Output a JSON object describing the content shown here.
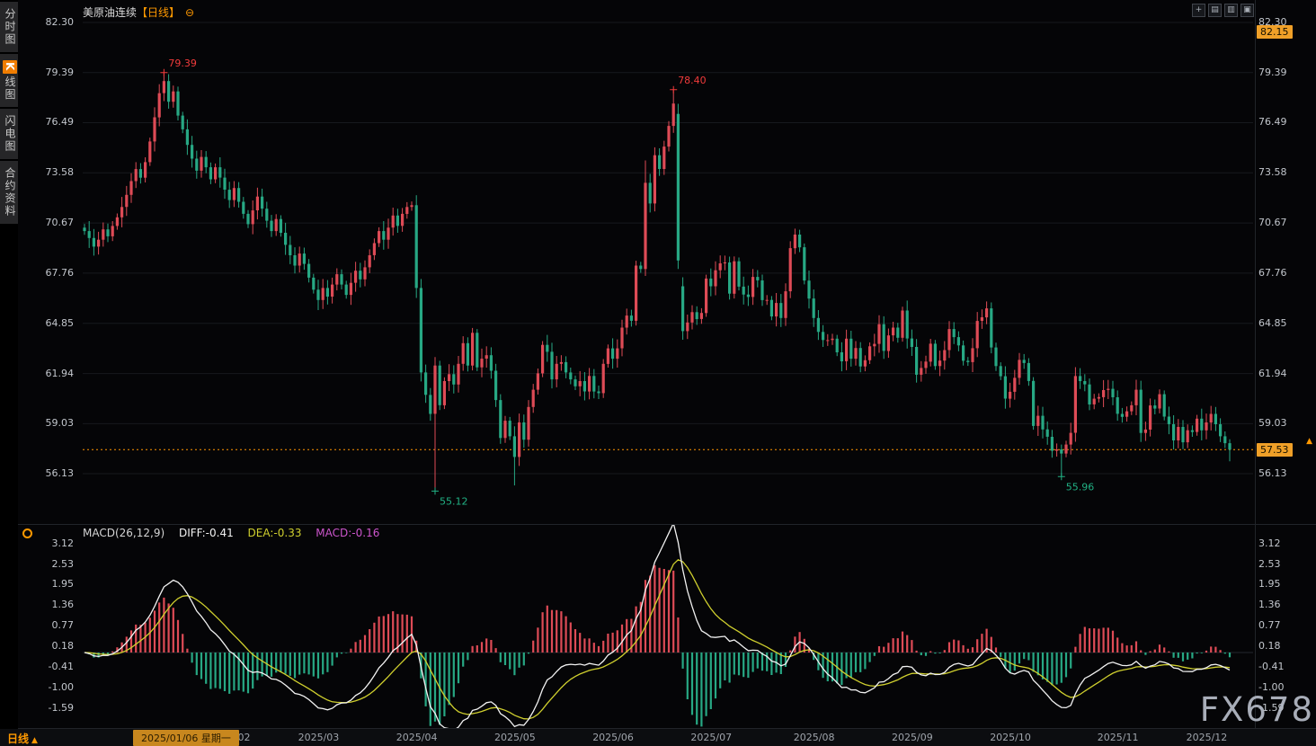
{
  "app": {
    "title_symbol": "美原油连续",
    "title_period": "【日线】",
    "watermark": "FX678"
  },
  "icons": {
    "settings_glyph": "⊖",
    "toolbar": [
      {
        "name": "add-window",
        "glyph": "+"
      },
      {
        "name": "kline-view",
        "glyph": "▤"
      },
      {
        "name": "chart-style",
        "glyph": "▥"
      },
      {
        "name": "maximize",
        "glyph": "▣"
      }
    ],
    "period_arrow": "▲",
    "price_arrow": "▲"
  },
  "sidebar": {
    "items": [
      {
        "label": "分时图"
      },
      {
        "badge": "K",
        "label": "线图",
        "selected": true
      },
      {
        "label": "闪电图"
      },
      {
        "label": "合约资料"
      }
    ]
  },
  "period_selector": {
    "label": "日线"
  },
  "colors": {
    "up": "#de4b56",
    "down": "#27a884",
    "accent": "#ff9500",
    "diff_line": "#f2f2f2",
    "dea_line": "#cfcf2e",
    "ann_up": "#f23b3b",
    "ann_down": "#21b184",
    "axis_text": "#c2c6cc",
    "grid": "#17191e",
    "badge_bg": "#f0a028"
  },
  "chart_data": {
    "type": "candlestick",
    "title": "美原油连续【日线】",
    "symbol": "美原油连续",
    "period": "日线",
    "ylim": [
      56.13,
      82.3
    ],
    "price_axis_ticks": [
      "82.30",
      "79.39",
      "76.49",
      "73.58",
      "70.67",
      "67.76",
      "64.85",
      "61.94",
      "59.03",
      "56.13"
    ],
    "range_high_badge": "82.15",
    "last_price": {
      "value": 57.53,
      "label": "57.53"
    },
    "annotations": [
      {
        "text": "79.39",
        "index": 17,
        "price": 79.39,
        "placement": "above"
      },
      {
        "text": "78.40",
        "index": 126,
        "price": 78.4,
        "placement": "above"
      },
      {
        "text": "55.12",
        "index": 75,
        "price": 55.12,
        "placement": "below"
      },
      {
        "text": "55.96",
        "index": 209,
        "price": 55.96,
        "placement": "below"
      }
    ],
    "candles": {
      "first_open": 70.4,
      "default_wick": 0.3,
      "closes": [
        70.2,
        69.8,
        69.3,
        69.7,
        70.3,
        69.9,
        70.5,
        71.0,
        71.6,
        72.3,
        73.1,
        73.8,
        73.3,
        74.2,
        75.4,
        76.8,
        78.2,
        78.9,
        77.7,
        78.3,
        76.9,
        76.1,
        75.2,
        74.4,
        73.7,
        74.5,
        73.9,
        73.2,
        73.9,
        73.3,
        72.6,
        72.0,
        72.7,
        71.9,
        71.2,
        70.6,
        71.4,
        72.2,
        71.5,
        70.8,
        70.2,
        70.9,
        70.1,
        69.4,
        68.8,
        68.2,
        68.9,
        68.3,
        67.5,
        66.8,
        66.2,
        66.9,
        66.4,
        67.1,
        67.7,
        67.1,
        66.5,
        67.2,
        67.9,
        67.4,
        68.1,
        68.8,
        69.5,
        70.2,
        69.7,
        70.4,
        71.1,
        70.5,
        71.2,
        71.6,
        71.7,
        66.9,
        62.0,
        60.7,
        59.6,
        62.4,
        60.1,
        61.5,
        61.9,
        61.3,
        62.5,
        63.7,
        62.4,
        64.3,
        62.3,
        62.8,
        63.0,
        62.1,
        60.4,
        58.2,
        59.2,
        58.3,
        57.1,
        59.1,
        58.1,
        60.0,
        61.0,
        61.95,
        63.6,
        63.2,
        61.6,
        62.5,
        62.6,
        62.0,
        61.6,
        61.2,
        61.5,
        60.9,
        61.8,
        60.9,
        60.8,
        62.5,
        63.4,
        62.8,
        63.4,
        64.6,
        65.3,
        65.0,
        68.2,
        68.0,
        73.0,
        71.8,
        74.6,
        73.8,
        75.1,
        76.3,
        77.6,
        68.5,
        64.4,
        64.9,
        65.5,
        65.1,
        65.45,
        67.45,
        67.0,
        67.93,
        68.33,
        68.38,
        66.57,
        68.45,
        66.98,
        66.52,
        66.38,
        67.54,
        67.34,
        66.2,
        66.21,
        65.25,
        66.03,
        65.16,
        66.71,
        69.21,
        70.0,
        69.26,
        67.33,
        66.29,
        65.16,
        64.35,
        63.88,
        63.88,
        63.96,
        63.17,
        62.65,
        63.96,
        62.8,
        63.42,
        62.35,
        62.71,
        63.52,
        63.66,
        64.8,
        63.25,
        64.15,
        64.6,
        64.01,
        65.59,
        63.97,
        63.48,
        61.87,
        62.26,
        62.63,
        63.67,
        62.37,
        62.69,
        63.3,
        64.52,
        64.05,
        63.57,
        62.68,
        62.6,
        63.41,
        64.99,
        65.2,
        65.72,
        63.45,
        62.37,
        61.78,
        60.48,
        60.88,
        61.69,
        62.73,
        62.55,
        61.51,
        58.9,
        59.49,
        58.7,
        58.27,
        57.46,
        57.54,
        57.3,
        57.82,
        58.5,
        61.79,
        61.5,
        61.31,
        60.15,
        60.48,
        60.57,
        60.98,
        61.05,
        60.56,
        59.6,
        59.43,
        59.75,
        60.1,
        61.0,
        58.49,
        58.69,
        60.09,
        59.91,
        60.74,
        59.44,
        59.0,
        58.06,
        58.84,
        57.95,
        58.65,
        58.55,
        59.32,
        58.64,
        59.1,
        59.6,
        59.0,
        58.3,
        57.9,
        57.53
      ],
      "overrides": {
        "17": {
          "high": 79.39
        },
        "75": {
          "open": 59.6,
          "high": 62.9,
          "low": 55.12
        },
        "92": {
          "low": 55.45
        },
        "120": {
          "high": 74.3,
          "low": 67.6
        },
        "126": {
          "high": 78.4,
          "low": 75.9
        },
        "127": {
          "open": 77.0,
          "low": 68.0
        },
        "128": {
          "open": 67.0,
          "low": 63.9
        },
        "209": {
          "low": 55.96
        },
        "245": {
          "low": 56.85
        }
      }
    },
    "macd": {
      "header": {
        "params": "MACD(26,12,9)",
        "diff": "DIFF:-0.41",
        "dea": "DEA:-0.33",
        "macd": "MACD:-0.16"
      },
      "axis_ticks": [
        "3.12",
        "2.53",
        "1.95",
        "1.36",
        "0.77",
        "0.18",
        "-0.41",
        "-1.00",
        "-1.59"
      ],
      "ylim": [
        -1.59,
        3.12
      ]
    },
    "time_axis": {
      "selected": {
        "label": "2025/01/06 星期一",
        "index": 10
      },
      "months": [
        {
          "label": "2025/02",
          "index": 29
        },
        {
          "label": "2025/03",
          "index": 48
        },
        {
          "label": "2025/04",
          "index": 69
        },
        {
          "label": "2025/05",
          "index": 90
        },
        {
          "label": "2025/06",
          "index": 111
        },
        {
          "label": "2025/07",
          "index": 132
        },
        {
          "label": "2025/08",
          "index": 154
        },
        {
          "label": "2025/09",
          "index": 175
        },
        {
          "label": "2025/10",
          "index": 196
        },
        {
          "label": "2025/11",
          "index": 219
        },
        {
          "label": "2025/12",
          "index": 238
        }
      ]
    }
  }
}
